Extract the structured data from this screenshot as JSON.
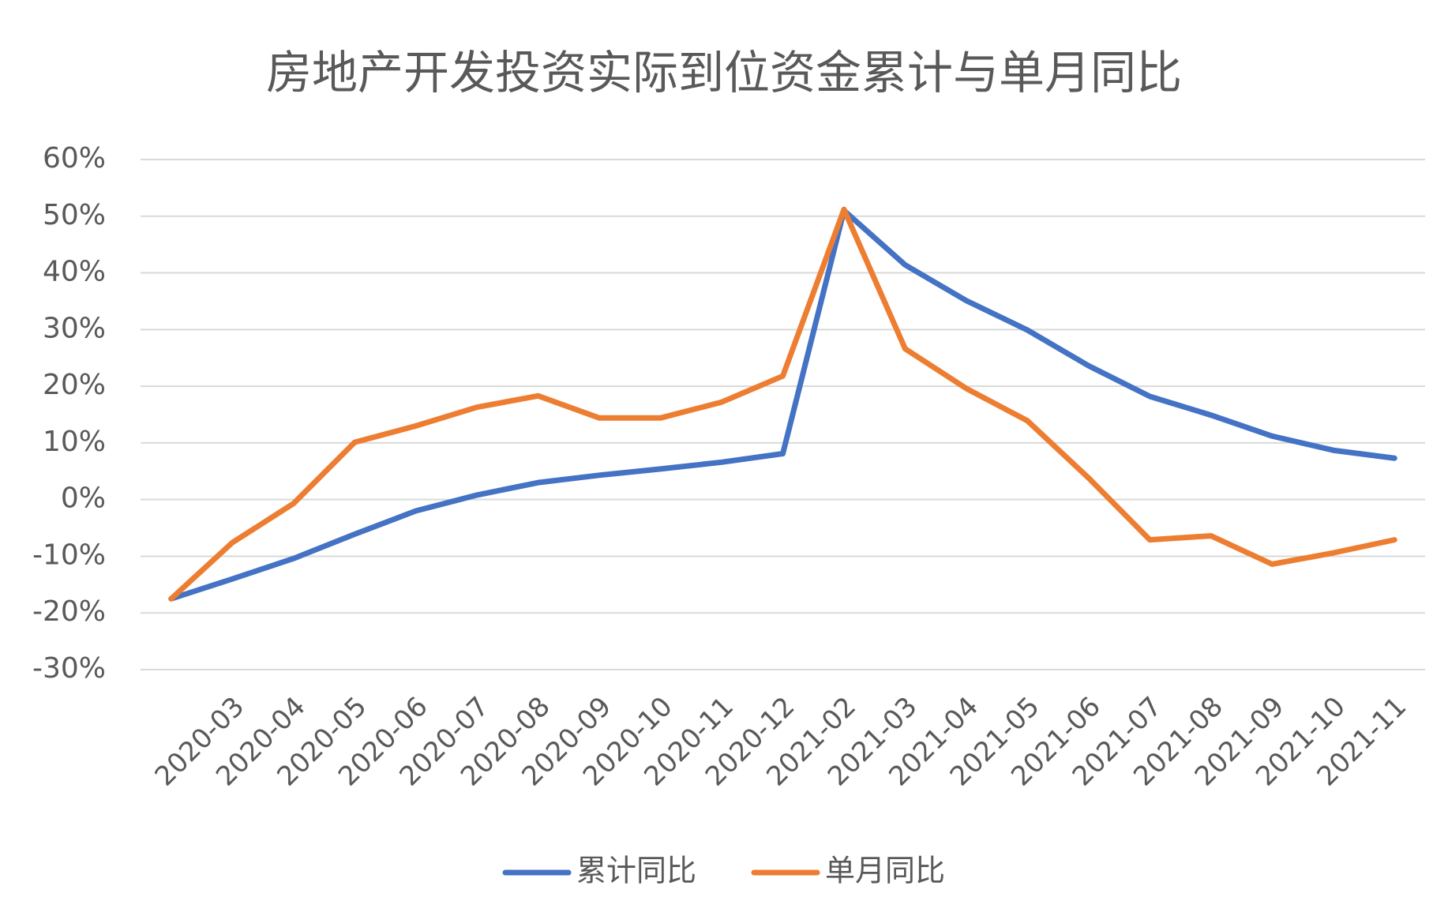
{
  "chart_data": {
    "type": "line",
    "title": "房地产开发投资实际到位资金累计与单月同比",
    "categories": [
      null,
      "2020-03",
      "2020-04",
      "2020-05",
      "2020-06",
      "2020-07",
      "2020-08",
      "2020-09",
      "2020-10",
      "2020-11",
      "2020-12",
      "2021-02",
      "2021-03",
      "2021-04",
      "2021-05",
      "2021-06",
      "2021-07",
      "2021-08",
      "2021-09",
      "2021-10",
      "2021-11"
    ],
    "series": [
      {
        "name": "累计同比",
        "color": "#4472c4",
        "values": [
          -17.5,
          -14.0,
          -10.4,
          -6.1,
          -2.0,
          0.8,
          3.0,
          4.3,
          5.4,
          6.6,
          8.1,
          51.0,
          41.4,
          35.1,
          29.9,
          23.6,
          18.2,
          14.9,
          11.2,
          8.7,
          7.3
        ]
      },
      {
        "name": "单月同比",
        "color": "#ed7d31",
        "values": [
          -17.5,
          -7.6,
          -0.7,
          10.1,
          13.0,
          16.3,
          18.3,
          14.4,
          14.4,
          17.2,
          21.8,
          51.2,
          26.6,
          19.6,
          13.9,
          3.8,
          -7.1,
          -6.4,
          -11.4,
          -9.4,
          -7.1
        ]
      }
    ],
    "ylim": [
      -30,
      60
    ],
    "yticks": [
      {
        "value": -30,
        "label": "-30%"
      },
      {
        "value": -20,
        "label": "-20%"
      },
      {
        "value": -10,
        "label": "-10%"
      },
      {
        "value": 0,
        "label": "0%"
      },
      {
        "value": 10,
        "label": "10%"
      },
      {
        "value": 20,
        "label": "20%"
      },
      {
        "value": 30,
        "label": "30%"
      },
      {
        "value": 40,
        "label": "40%"
      },
      {
        "value": 50,
        "label": "50%"
      },
      {
        "value": 60,
        "label": "60%"
      }
    ],
    "grid": true,
    "legend": "bottom"
  }
}
